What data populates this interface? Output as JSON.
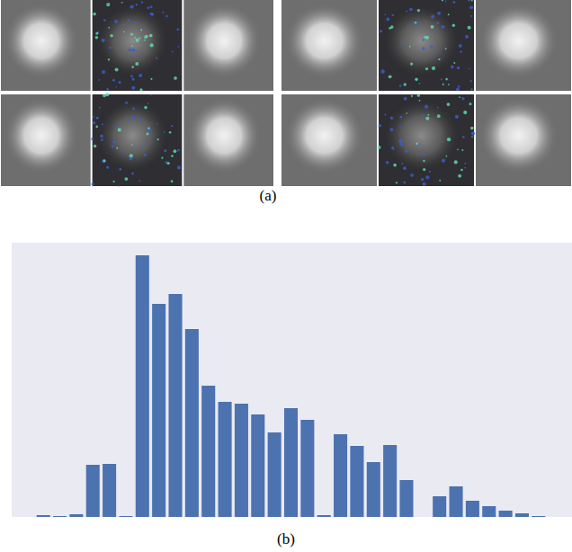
{
  "figure": {
    "panel_a": {
      "label": "(a)"
    },
    "panel_b": {
      "label": "(b)"
    }
  },
  "chart_data": {
    "type": "bar",
    "categories": [
      null,
      null,
      null,
      null,
      null,
      null,
      null,
      null,
      null,
      null,
      null,
      null,
      null,
      null,
      null,
      null,
      null,
      null,
      null,
      null,
      null,
      null,
      null,
      null,
      null,
      null,
      null,
      null,
      null,
      null,
      null
    ],
    "values": [
      2,
      1,
      3,
      58,
      59,
      1,
      291,
      237,
      248,
      209,
      146,
      128,
      126,
      114,
      94,
      121,
      108,
      2,
      92,
      79,
      61,
      80,
      41,
      0,
      23,
      34,
      18,
      12,
      7,
      4,
      1
    ],
    "color": "#4c72b0",
    "ylim": [
      0,
      305
    ],
    "grid": false,
    "tick_labels": false
  }
}
